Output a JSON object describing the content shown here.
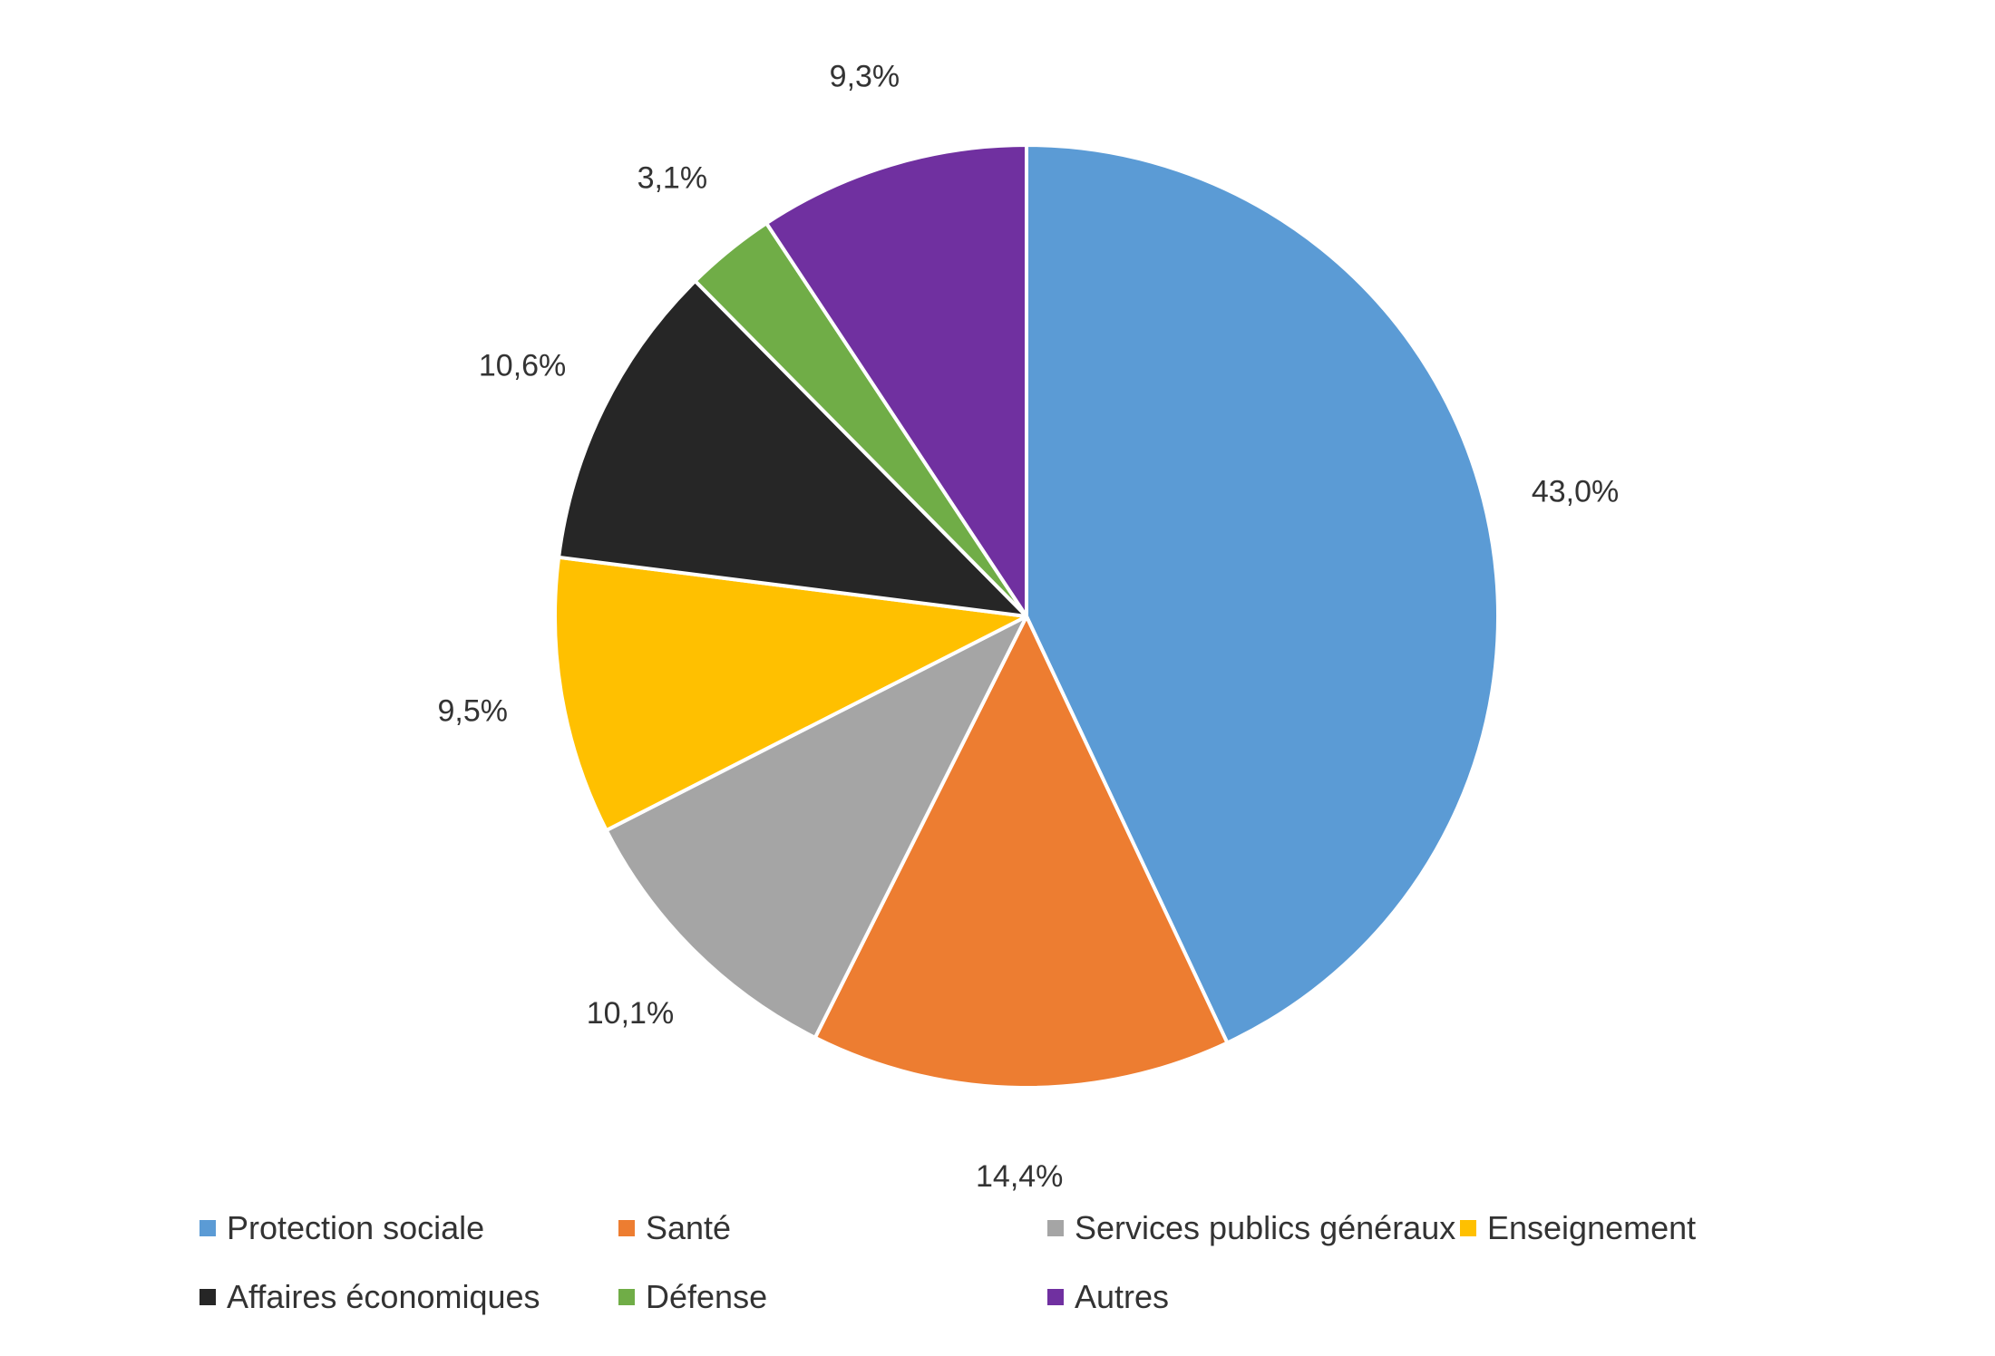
{
  "chart_data": {
    "type": "pie",
    "title": "",
    "start_angle_deg": 0,
    "direction": "clockwise",
    "legend_position": "bottom",
    "slices": [
      {
        "label": "Protection sociale",
        "value": 43.0,
        "value_label": "43,0%",
        "color": "#5B9BD5"
      },
      {
        "label": "Santé",
        "value": 14.4,
        "value_label": "14,4%",
        "color": "#ED7D31"
      },
      {
        "label": "Services publics généraux",
        "value": 10.1,
        "value_label": "10,1%",
        "color": "#A5A5A5"
      },
      {
        "label": "Enseignement",
        "value": 9.5,
        "value_label": "9,5%",
        "color": "#FFC000"
      },
      {
        "label": "Affaires économiques",
        "value": 10.6,
        "value_label": "10,6%",
        "color": "#262626"
      },
      {
        "label": "Défense",
        "value": 3.1,
        "value_label": "3,1%",
        "color": "#70AD47"
      },
      {
        "label": "Autres",
        "value": 9.3,
        "value_label": "9,3%",
        "color": "#7030A0"
      }
    ]
  }
}
